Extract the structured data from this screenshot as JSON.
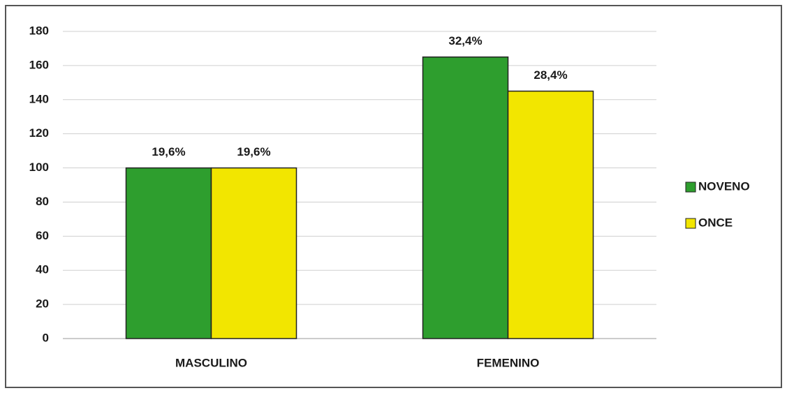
{
  "chart_data": {
    "type": "bar",
    "categories": [
      "MASCULINO",
      "FEMENINO"
    ],
    "series": [
      {
        "name": "NOVENO",
        "color": "#2e9e2e",
        "values": [
          100,
          165
        ],
        "value_labels": [
          "19,6%",
          "32,4%"
        ]
      },
      {
        "name": "ONCE",
        "color": "#f2e600",
        "values": [
          100,
          145
        ],
        "value_labels": [
          "19,6%",
          "28,4%"
        ]
      }
    ],
    "ylim": [
      0,
      180
    ],
    "yticks": [
      0,
      20,
      40,
      60,
      80,
      100,
      120,
      140,
      160,
      180
    ],
    "grid": true,
    "legend": "right"
  }
}
